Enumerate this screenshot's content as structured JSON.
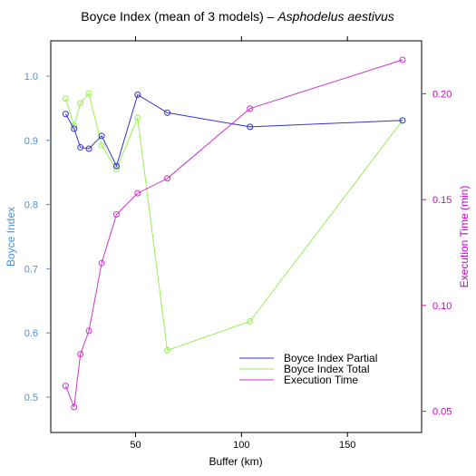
{
  "chart_data": {
    "type": "line",
    "title": "Boyce Index (mean of 3 models) – ",
    "title_species": "Asphodelus aestivus",
    "xlabel": "Buffer (km)",
    "ylabel_left": "Boyce Index",
    "ylabel_right": "Execution Time (min)",
    "xlim": [
      10,
      185
    ],
    "ylim_left": [
      0.445,
      1.055
    ],
    "ylim_right": [
      0.04,
      0.225
    ],
    "x_ticks": [
      50,
      100,
      150
    ],
    "y_ticks_left": [
      0.5,
      0.6,
      0.7,
      0.8,
      0.9,
      1.0
    ],
    "y_ticks_left_labels": [
      "0.5",
      "0.6",
      "0.7",
      "0.8",
      "0.9",
      "1.0"
    ],
    "y_ticks_right": [
      0.05,
      0.1,
      0.15,
      0.2
    ],
    "y_ticks_right_labels": [
      "0.05",
      "0.10",
      "0.15",
      "0.20"
    ],
    "left_axis_color": "#4a90d9",
    "right_axis_color": "#cc00cc",
    "legend_position": "bottom-right",
    "series": [
      {
        "name": "Boyce Index Partial",
        "axis": "left",
        "color": "#3333cc",
        "x": [
          17,
          21,
          24,
          28,
          34,
          41,
          51,
          65,
          104,
          176
        ],
        "y": [
          0.941,
          0.918,
          0.889,
          0.887,
          0.907,
          0.86,
          0.971,
          0.943,
          0.921,
          0.931
        ]
      },
      {
        "name": "Boyce Index Total",
        "axis": "left",
        "color": "#99ee55",
        "x": [
          17,
          21,
          24,
          28,
          34,
          41,
          51,
          65,
          104,
          176
        ],
        "y": [
          0.965,
          0.923,
          0.958,
          0.973,
          0.892,
          0.855,
          0.935,
          0.573,
          0.618,
          0.931
        ]
      },
      {
        "name": "Execution Time",
        "axis": "right",
        "color": "#cc33cc",
        "x": [
          17,
          21,
          24,
          28,
          34,
          41,
          51,
          65,
          104,
          176
        ],
        "y": [
          0.062,
          0.052,
          0.077,
          0.088,
          0.12,
          0.143,
          0.153,
          0.16,
          0.193,
          0.216
        ]
      }
    ]
  }
}
